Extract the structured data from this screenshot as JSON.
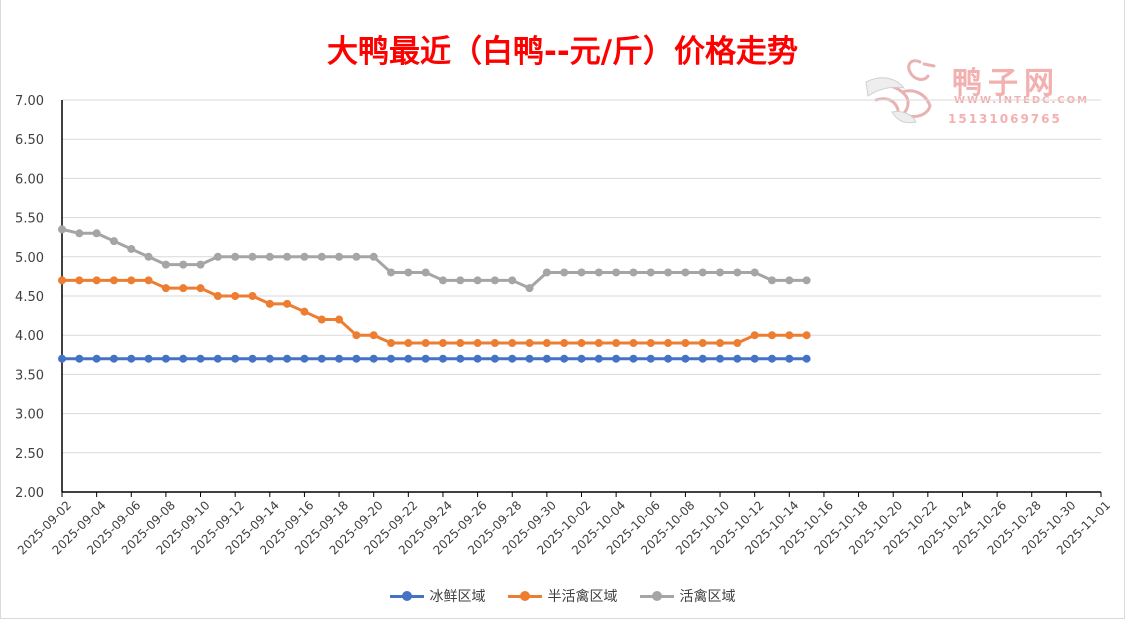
{
  "chart_data": {
    "type": "line",
    "title": "大鸭最近（白鸭--元/斤）价格走势",
    "ylim": [
      2.0,
      7.0
    ],
    "y_ticks": [
      "7.00",
      "6.50",
      "6.00",
      "5.50",
      "5.00",
      "4.50",
      "4.00",
      "3.50",
      "3.00",
      "2.50",
      "2.00"
    ],
    "x_start": "2025-09-02",
    "x_ticks": [
      "2025-09-02",
      "2025-09-04",
      "2025-09-06",
      "2025-09-08",
      "2025-09-10",
      "2025-09-12",
      "2025-09-14",
      "2025-09-16",
      "2025-09-18",
      "2025-09-20",
      "2025-09-22",
      "2025-09-24",
      "2025-09-26",
      "2025-09-28",
      "2025-09-30",
      "2025-10-02",
      "2025-10-04",
      "2025-10-06",
      "2025-10-08",
      "2025-10-10",
      "2025-10-12",
      "2025-10-14",
      "2025-10-16",
      "2025-10-18",
      "2025-10-20",
      "2025-10-22",
      "2025-10-24",
      "2025-10-26",
      "2025-10-28",
      "2025-10-30",
      "2025-11-01"
    ],
    "grid": true,
    "legend_position": "bottom",
    "series": [
      {
        "name": "冰鲜区域",
        "color": "#4472c4",
        "values": [
          3.7,
          3.7,
          3.7,
          3.7,
          3.7,
          3.7,
          3.7,
          3.7,
          3.7,
          3.7,
          3.7,
          3.7,
          3.7,
          3.7,
          3.7,
          3.7,
          3.7,
          3.7,
          3.7,
          3.7,
          3.7,
          3.7,
          3.7,
          3.7,
          3.7,
          3.7,
          3.7,
          3.7,
          3.7,
          3.7,
          3.7,
          3.7,
          3.7,
          3.7,
          3.7,
          3.7,
          3.7,
          3.7,
          3.7,
          3.7,
          3.7,
          3.7,
          3.7,
          3.7
        ]
      },
      {
        "name": "半活禽区域",
        "color": "#ed7d31",
        "values": [
          4.7,
          4.7,
          4.7,
          4.7,
          4.7,
          4.7,
          4.6,
          4.6,
          4.6,
          4.5,
          4.5,
          4.5,
          4.4,
          4.4,
          4.3,
          4.2,
          4.2,
          4.0,
          4.0,
          3.9,
          3.9,
          3.9,
          3.9,
          3.9,
          3.9,
          3.9,
          3.9,
          3.9,
          3.9,
          3.9,
          3.9,
          3.9,
          3.9,
          3.9,
          3.9,
          3.9,
          3.9,
          3.9,
          3.9,
          3.9,
          4.0,
          4.0,
          4.0,
          4.0
        ]
      },
      {
        "name": "活禽区域",
        "color": "#a5a5a5",
        "values": [
          5.35,
          5.3,
          5.3,
          5.2,
          5.1,
          5.0,
          4.9,
          4.9,
          4.9,
          5.0,
          5.0,
          5.0,
          5.0,
          5.0,
          5.0,
          5.0,
          5.0,
          5.0,
          5.0,
          4.8,
          4.8,
          4.8,
          4.7,
          4.7,
          4.7,
          4.7,
          4.7,
          4.6,
          4.8,
          4.8,
          4.8,
          4.8,
          4.8,
          4.8,
          4.8,
          4.8,
          4.8,
          4.8,
          4.8,
          4.8,
          4.8,
          4.7,
          4.7,
          4.7
        ]
      }
    ]
  },
  "watermark": {
    "name": "鸭子网",
    "url": "WWW.INTEDC.COM",
    "phone": "15131069765"
  }
}
